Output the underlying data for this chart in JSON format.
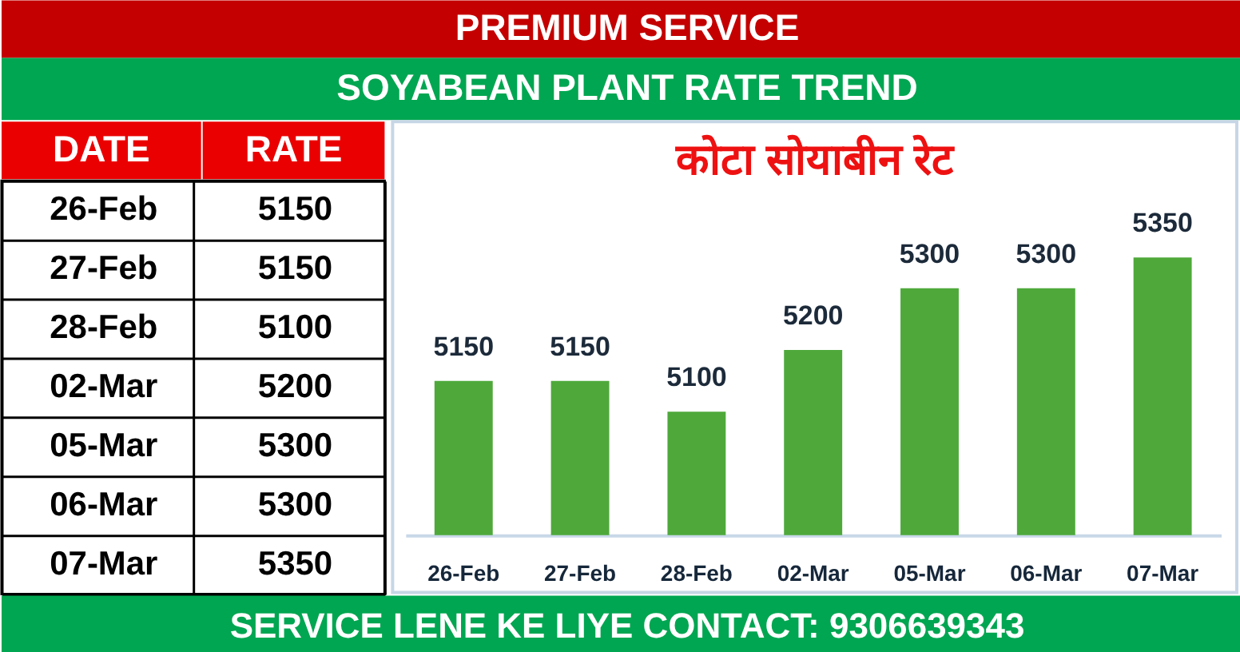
{
  "chart_data": [
    {
      "type": "other",
      "categories": [
        "26-Feb",
        "27-Feb",
        "28-Feb",
        "02-Mar",
        "05-Mar",
        "06-Mar",
        "07-Mar"
      ],
      "values": [
        5150,
        5150,
        5100,
        5200,
        5300,
        5300,
        5350
      ],
      "data_labels": true,
      "annotations": [
        "DATE",
        "RATE"
      ]
    },
    {
      "type": "bar",
      "title": "SOYABEAN PLANT RATE TREND",
      "subtitle": "कोटा सोयाबीन रेट",
      "categories": [
        "26-Feb",
        "27-Feb",
        "28-Feb",
        "02-Mar",
        "05-Mar",
        "06-Mar",
        "07-Mar"
      ],
      "values": [
        5150,
        5150,
        5100,
        5200,
        5300,
        5300,
        5350
      ],
      "color": "#4ea93a",
      "ylim": [
        4900,
        5570
      ],
      "data_labels": true,
      "tick_labels": "x",
      "annotations": [
        "PREMIUM SERVICE",
        "SERVICE LENE KE LIYE CONTACT: 9306639343"
      ]
    }
  ]
}
